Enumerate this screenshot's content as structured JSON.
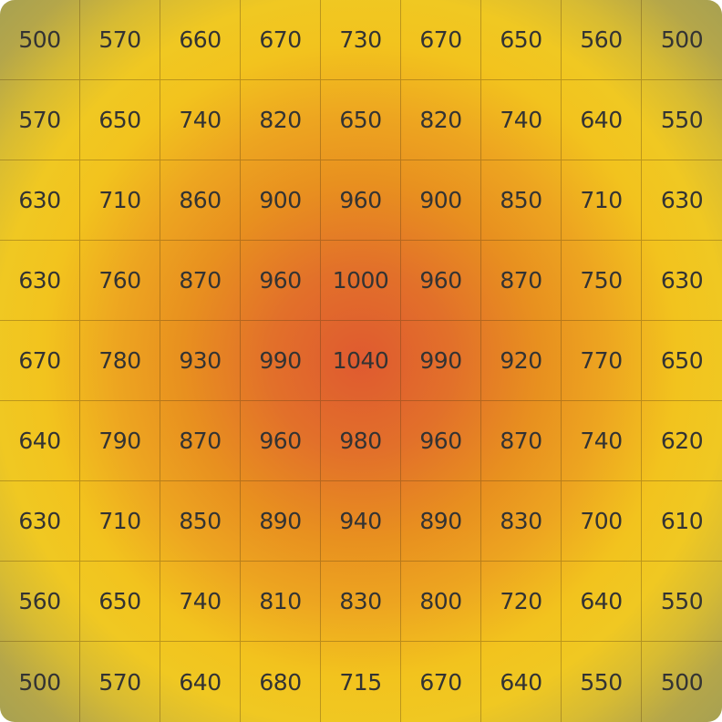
{
  "chart_data": {
    "type": "heatmap",
    "rows": 9,
    "cols": 9,
    "values": [
      [
        500,
        570,
        660,
        670,
        730,
        670,
        650,
        560,
        500
      ],
      [
        570,
        650,
        740,
        820,
        650,
        820,
        740,
        640,
        550
      ],
      [
        630,
        710,
        860,
        900,
        960,
        900,
        850,
        710,
        630
      ],
      [
        630,
        760,
        870,
        960,
        1000,
        960,
        870,
        750,
        630
      ],
      [
        670,
        780,
        930,
        990,
        1040,
        990,
        920,
        770,
        650
      ],
      [
        640,
        790,
        870,
        960,
        980,
        960,
        870,
        740,
        620
      ],
      [
        630,
        710,
        850,
        890,
        940,
        890,
        830,
        700,
        610
      ],
      [
        560,
        650,
        740,
        810,
        830,
        800,
        720,
        640,
        550
      ],
      [
        500,
        570,
        640,
        680,
        715,
        670,
        640,
        550,
        500
      ]
    ],
    "colorscale": {
      "low": "#a7a152",
      "mid": "#f2c31e",
      "high": "#df5a30"
    },
    "grid": true
  }
}
